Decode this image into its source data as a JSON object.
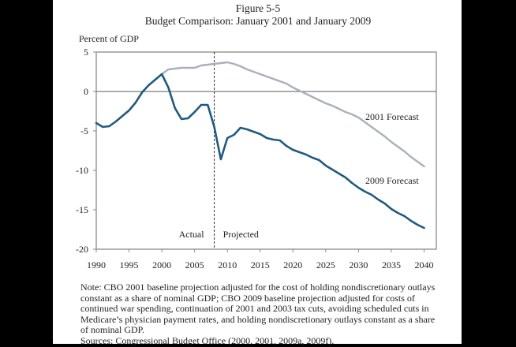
{
  "figure": {
    "number": "Figure 5-5",
    "title": "Budget Comparison:  January 2001 and January 2009"
  },
  "chart_data": {
    "type": "line",
    "title": "Budget Comparison:  January 2001 and January 2009",
    "ylabel": "Percent of GDP",
    "xlabel": "",
    "xlim": [
      1990,
      2042
    ],
    "ylim": [
      -20,
      5
    ],
    "x_ticks": [
      1990,
      1995,
      2000,
      2005,
      2010,
      2015,
      2020,
      2025,
      2030,
      2035,
      2040
    ],
    "y_ticks": [
      5,
      0,
      -5,
      -10,
      -15,
      -20
    ],
    "grid": false,
    "zero_line": true,
    "divider": {
      "x": 2008,
      "style": "dashed",
      "left_label": "Actual",
      "right_label": "Projected"
    },
    "series": [
      {
        "name": "2001 Forecast",
        "color": "#a9b1bd",
        "x": [
          2000,
          2001,
          2002,
          2003,
          2004,
          2005,
          2006,
          2007,
          2008,
          2009,
          2010,
          2011,
          2012,
          2013,
          2014,
          2015,
          2016,
          2017,
          2018,
          2019,
          2020,
          2021,
          2022,
          2023,
          2024,
          2025,
          2026,
          2027,
          2028,
          2029,
          2030,
          2031,
          2032,
          2033,
          2034,
          2035,
          2036,
          2037,
          2038,
          2039,
          2040
        ],
        "values": [
          2.2,
          2.8,
          2.9,
          3.0,
          3.0,
          3.0,
          3.3,
          3.4,
          3.5,
          3.6,
          3.7,
          3.5,
          3.2,
          2.8,
          2.5,
          2.2,
          1.9,
          1.6,
          1.3,
          1.0,
          0.5,
          0.1,
          -0.3,
          -0.7,
          -1.1,
          -1.5,
          -1.8,
          -2.2,
          -2.6,
          -2.9,
          -3.3,
          -3.9,
          -4.5,
          -5.1,
          -5.7,
          -6.4,
          -7.0,
          -7.6,
          -8.3,
          -8.9,
          -9.5
        ]
      },
      {
        "name": "2009 Forecast",
        "color": "#1f5a80",
        "x": [
          1990,
          1991,
          1992,
          1993,
          1994,
          1995,
          1996,
          1997,
          1998,
          1999,
          2000,
          2001,
          2002,
          2003,
          2004,
          2005,
          2006,
          2007,
          2008,
          2009,
          2010,
          2011,
          2012,
          2013,
          2014,
          2015,
          2016,
          2017,
          2018,
          2019,
          2020,
          2021,
          2022,
          2023,
          2024,
          2025,
          2026,
          2027,
          2028,
          2029,
          2030,
          2031,
          2032,
          2033,
          2034,
          2035,
          2036,
          2037,
          2038,
          2039,
          2040
        ],
        "values": [
          -4.0,
          -4.5,
          -4.4,
          -3.8,
          -3.1,
          -2.4,
          -1.4,
          -0.1,
          0.8,
          1.5,
          2.2,
          0.5,
          -2.1,
          -3.5,
          -3.4,
          -2.6,
          -1.7,
          -1.7,
          -4.5,
          -8.6,
          -5.9,
          -5.5,
          -4.6,
          -4.8,
          -5.1,
          -5.4,
          -5.9,
          -6.1,
          -6.2,
          -6.9,
          -7.4,
          -7.7,
          -8.0,
          -8.4,
          -8.7,
          -9.4,
          -9.9,
          -10.4,
          -10.9,
          -11.6,
          -12.2,
          -12.7,
          -13.1,
          -13.7,
          -14.2,
          -14.9,
          -15.4,
          -15.8,
          -16.4,
          -16.9,
          -17.3
        ]
      }
    ],
    "legend": "inline labels near line ends (right side)"
  },
  "notes": {
    "note": "Note:  CBO 2001 baseline projection adjusted for the cost of holding nondiscretionary outlays constant as a share of nominal GDP; CBO 2009 baseline projection adjusted for costs of continued war spending, continuation of 2001 and 2003 tax cuts, avoiding scheduled cuts in Medicare’s physician payment rates, and holding nondiscretionary outlays constant as a share of nominal GDP.",
    "sources": "Sources:  Congressional Budget Office (2000, 2001, 2009a, 2009f)."
  }
}
